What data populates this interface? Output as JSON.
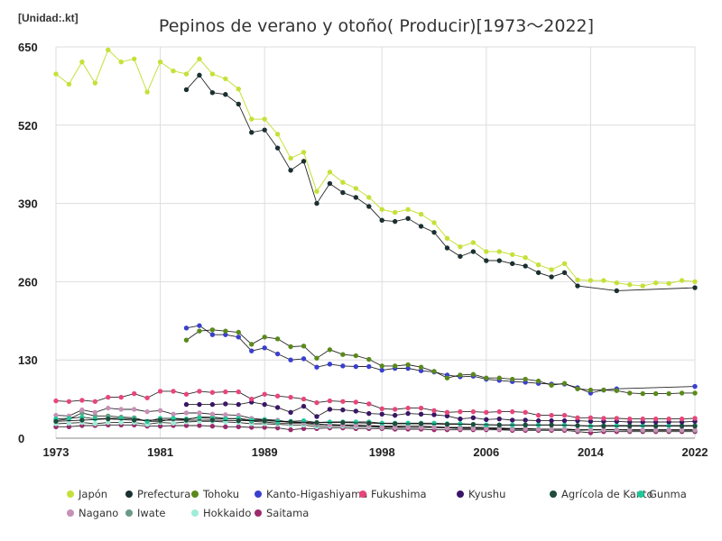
{
  "chart_data": {
    "type": "line",
    "title": "Pepinos de verano y otoño( Producir)[1973～2022]",
    "unit_label": "[Unidad:.kt]",
    "xlim": [
      1973,
      2022
    ],
    "ylim": [
      0,
      650
    ],
    "x_ticks": [
      1973,
      1981,
      1989,
      1998,
      2006,
      2014,
      2022
    ],
    "y_ticks": [
      0,
      130,
      260,
      390,
      520,
      650
    ],
    "grid": true,
    "legend_position": "bottom",
    "series": [
      {
        "name": "Japón",
        "color": "#c6e03a",
        "x": [
          1973,
          1974,
          1975,
          1976,
          1977,
          1978,
          1979,
          1980,
          1981,
          1982,
          1983,
          1984,
          1985,
          1986,
          1987,
          1988,
          1989,
          1990,
          1991,
          1992,
          1993,
          1994,
          1995,
          1996,
          1997,
          1998,
          1999,
          2000,
          2001,
          2002,
          2003,
          2004,
          2005,
          2006,
          2007,
          2008,
          2009,
          2010,
          2011,
          2012,
          2013,
          2014,
          2015,
          2016,
          2017,
          2018,
          2019,
          2020,
          2021,
          2022
        ],
        "y": [
          605,
          588,
          625,
          590,
          645,
          625,
          630,
          575,
          625,
          610,
          605,
          630,
          605,
          597,
          580,
          530,
          530,
          505,
          465,
          475,
          410,
          442,
          425,
          415,
          400,
          380,
          375,
          380,
          372,
          358,
          332,
          318,
          325,
          310,
          310,
          305,
          300,
          288,
          280,
          290,
          263,
          262,
          262,
          258,
          255,
          253,
          258,
          257,
          262,
          260
        ]
      },
      {
        "name": "Prefectura",
        "color": "#1b3030",
        "x": [
          1983,
          1984,
          1985,
          1986,
          1987,
          1988,
          1989,
          1990,
          1991,
          1992,
          1993,
          1994,
          1995,
          1996,
          1997,
          1998,
          1999,
          2000,
          2001,
          2002,
          2003,
          2004,
          2005,
          2006,
          2007,
          2008,
          2009,
          2010,
          2011,
          2012,
          2013,
          2016,
          2022
        ],
        "y": [
          579,
          603,
          574,
          571,
          555,
          508,
          512,
          482,
          445,
          460,
          390,
          423,
          408,
          400,
          385,
          362,
          360,
          365,
          352,
          342,
          316,
          302,
          310,
          295,
          295,
          290,
          286,
          275,
          268,
          275,
          253,
          245,
          250
        ]
      },
      {
        "name": "Tohoku",
        "color": "#5a8a1a",
        "x": [
          1983,
          1984,
          1985,
          1986,
          1987,
          1988,
          1989,
          1990,
          1991,
          1992,
          1993,
          1994,
          1995,
          1996,
          1997,
          1998,
          1999,
          2000,
          2001,
          2002,
          2003,
          2004,
          2005,
          2006,
          2007,
          2008,
          2009,
          2010,
          2011,
          2012,
          2013,
          2014,
          2015,
          2016,
          2017,
          2018,
          2019,
          2020,
          2021,
          2022
        ],
        "y": [
          163,
          178,
          180,
          178,
          176,
          156,
          168,
          165,
          152,
          153,
          133,
          147,
          139,
          137,
          131,
          120,
          120,
          122,
          118,
          111,
          100,
          105,
          106,
          100,
          100,
          98,
          98,
          95,
          88,
          91,
          82,
          80,
          80,
          79,
          75,
          74,
          74,
          74,
          75,
          75
        ]
      },
      {
        "name": "Kanto-Higashiyama",
        "color": "#3b3fcf",
        "x": [
          1983,
          1984,
          1985,
          1986,
          1987,
          1988,
          1989,
          1990,
          1991,
          1992,
          1993,
          1994,
          1995,
          1996,
          1997,
          1998,
          1999,
          2000,
          2001,
          2002,
          2003,
          2004,
          2005,
          2006,
          2007,
          2008,
          2009,
          2010,
          2011,
          2012,
          2013,
          2014,
          2015,
          2016,
          2022
        ],
        "y": [
          183,
          187,
          172,
          172,
          168,
          145,
          150,
          140,
          130,
          132,
          118,
          123,
          120,
          119,
          119,
          113,
          116,
          116,
          112,
          110,
          105,
          102,
          103,
          98,
          96,
          94,
          93,
          91,
          90,
          90,
          84,
          75,
          80,
          82,
          86
        ]
      },
      {
        "name": "Fukushima",
        "color": "#e8467a",
        "x": [
          1973,
          1974,
          1975,
          1976,
          1977,
          1978,
          1979,
          1980,
          1981,
          1982,
          1983,
          1984,
          1985,
          1986,
          1987,
          1988,
          1989,
          1990,
          1991,
          1992,
          1993,
          1994,
          1995,
          1996,
          1997,
          1998,
          1999,
          2000,
          2001,
          2002,
          2003,
          2004,
          2005,
          2006,
          2007,
          2008,
          2009,
          2010,
          2011,
          2012,
          2013,
          2014,
          2015,
          2016,
          2017,
          2018,
          2019,
          2020,
          2021,
          2022
        ],
        "y": [
          62,
          61,
          63,
          61,
          68,
          68,
          74,
          67,
          78,
          78,
          73,
          78,
          76,
          77,
          77,
          65,
          73,
          70,
          68,
          65,
          59,
          62,
          61,
          60,
          57,
          49,
          48,
          50,
          50,
          46,
          43,
          44,
          44,
          43,
          44,
          44,
          43,
          38,
          38,
          38,
          34,
          34,
          33,
          33,
          32,
          32,
          32,
          32,
          32,
          33
        ]
      },
      {
        "name": "Kyushu",
        "color": "#3a1766",
        "x": [
          1983,
          1984,
          1985,
          1986,
          1987,
          1988,
          1989,
          1990,
          1991,
          1992,
          1993,
          1994,
          1995,
          1996,
          1997,
          1998,
          1999,
          2000,
          2001,
          2002,
          2003,
          2004,
          2005,
          2006,
          2007,
          2008,
          2009,
          2010,
          2011,
          2012,
          2013,
          2014,
          2015,
          2016,
          2017,
          2018,
          2019,
          2020,
          2021,
          2022
        ],
        "y": [
          56,
          56,
          56,
          57,
          56,
          60,
          56,
          51,
          43,
          53,
          36,
          48,
          47,
          45,
          41,
          40,
          38,
          41,
          40,
          39,
          37,
          32,
          34,
          31,
          32,
          30,
          30,
          29,
          29,
          29,
          29,
          28,
          28,
          28,
          27,
          27,
          27,
          27,
          27,
          28
        ]
      },
      {
        "name": "Agrícola de Kanto",
        "color": "#1e4d3b",
        "x": [
          1973,
          1975,
          1977,
          1979,
          1981,
          1983,
          1985,
          1987,
          1989,
          1991,
          1993,
          1995,
          1997,
          1999,
          2001,
          2003,
          2005,
          2007,
          2009,
          2011,
          2013,
          2015,
          2017,
          2019,
          2021,
          2022
        ],
        "y": [
          28,
          30,
          32,
          30,
          30,
          30,
          30,
          29,
          29,
          27,
          26,
          26,
          25,
          24,
          24,
          23,
          23,
          22,
          22,
          22,
          21,
          20,
          20,
          20,
          20,
          20
        ]
      },
      {
        "name": "Gunma",
        "color": "#20c99a",
        "x": [
          1973,
          1974,
          1975,
          1976,
          1977,
          1978,
          1979,
          1980,
          1981,
          1982,
          1983,
          1984,
          1985,
          1986,
          1987,
          1988,
          1989,
          1990,
          1991,
          1992,
          1993,
          1994,
          1995,
          1996,
          1997,
          1998,
          1999,
          2000,
          2001,
          2002,
          2003,
          2004,
          2005,
          2006,
          2007,
          2008,
          2009,
          2010,
          2011,
          2012,
          2013,
          2014,
          2015,
          2016,
          2017,
          2018,
          2019,
          2020,
          2021,
          2022
        ],
        "y": [
          32,
          33,
          35,
          32,
          33,
          33,
          32,
          28,
          33,
          33,
          32,
          34,
          33,
          32,
          33,
          30,
          31,
          28,
          28,
          29,
          26,
          27,
          27,
          27,
          27,
          25,
          25,
          25,
          25,
          25,
          24,
          24,
          23,
          22,
          22,
          22,
          22,
          22,
          22,
          22,
          21,
          20,
          21,
          21,
          21,
          21,
          21,
          21,
          21,
          21
        ]
      },
      {
        "name": "Nagano",
        "color": "#c790b7",
        "x": [
          1973,
          1974,
          1975,
          1976,
          1977,
          1978,
          1979,
          1980,
          1981,
          1982,
          1983,
          1984,
          1985,
          1986,
          1987,
          1988,
          1989,
          1990,
          1991,
          1992,
          1993,
          1994,
          1995,
          1996,
          1997,
          1998,
          1999,
          2000,
          2001,
          2002,
          2003,
          2004,
          2005,
          2006,
          2007,
          2008,
          2009,
          2010,
          2011,
          2012,
          2013,
          2014,
          2015,
          2016,
          2017,
          2018,
          2019,
          2020,
          2021,
          2022
        ],
        "y": [
          38,
          37,
          47,
          43,
          50,
          48,
          48,
          44,
          46,
          40,
          42,
          42,
          40,
          39,
          38,
          33,
          31,
          30,
          26,
          26,
          24,
          22,
          22,
          21,
          21,
          19,
          19,
          18,
          18,
          18,
          17,
          16,
          16,
          16,
          15,
          15,
          15,
          15,
          15,
          15,
          14,
          14,
          14,
          14,
          14,
          14,
          14,
          14,
          14,
          14
        ]
      },
      {
        "name": "Iwate",
        "color": "#6b9a85",
        "x": [
          1973,
          1974,
          1975,
          1976,
          1977,
          1978,
          1979,
          1980,
          1981,
          1982,
          1983,
          1984,
          1985,
          1986,
          1987,
          1988,
          1989,
          1990,
          1991,
          1992,
          1993,
          1994,
          1995,
          1996,
          1997,
          1998,
          1999,
          2000,
          2001,
          2002,
          2003,
          2004,
          2005,
          2006,
          2007,
          2008,
          2009,
          2010,
          2011,
          2012,
          2013,
          2014,
          2015,
          2016,
          2017,
          2018,
          2019,
          2020,
          2021,
          2022
        ],
        "y": [
          29,
          32,
          42,
          37,
          37,
          35,
          34,
          28,
          28,
          32,
          31,
          35,
          35,
          33,
          32,
          28,
          27,
          25,
          25,
          25,
          22,
          23,
          22,
          22,
          21,
          20,
          20,
          20,
          20,
          19,
          18,
          18,
          18,
          18,
          17,
          16,
          16,
          15,
          15,
          15,
          13,
          14,
          14,
          14,
          13,
          13,
          13,
          13,
          13,
          13
        ]
      },
      {
        "name": "Hokkaido",
        "color": "#a0ecd8",
        "x": [
          1973,
          1974,
          1975,
          1976,
          1977,
          1978,
          1979,
          1980,
          1981,
          1982,
          1983,
          1984,
          1985,
          1986,
          1987,
          1988,
          1989,
          1990,
          1991,
          1992,
          1993,
          1994,
          1995,
          1996,
          1997,
          1998,
          1999,
          2000,
          2001,
          2002,
          2003,
          2004,
          2005,
          2006,
          2007,
          2008,
          2009,
          2010,
          2011,
          2012,
          2013,
          2014,
          2015,
          2016,
          2017,
          2018,
          2019,
          2020,
          2021,
          2022
        ],
        "y": [
          24,
          25,
          26,
          24,
          26,
          26,
          26,
          23,
          26,
          25,
          27,
          28,
          28,
          27,
          26,
          24,
          24,
          23,
          22,
          22,
          19,
          20,
          20,
          19,
          19,
          18,
          18,
          18,
          18,
          18,
          17,
          17,
          17,
          16,
          16,
          16,
          16,
          15,
          15,
          15,
          14,
          14,
          14,
          14,
          14,
          14,
          14,
          14,
          14,
          14
        ]
      },
      {
        "name": "Saitama",
        "color": "#9c2a6c",
        "x": [
          1973,
          1974,
          1975,
          1976,
          1977,
          1978,
          1979,
          1980,
          1981,
          1982,
          1983,
          1984,
          1985,
          1986,
          1987,
          1988,
          1989,
          1990,
          1991,
          1992,
          1993,
          1994,
          1995,
          1996,
          1997,
          1998,
          1999,
          2000,
          2001,
          2002,
          2003,
          2004,
          2005,
          2006,
          2007,
          2008,
          2009,
          2010,
          2011,
          2012,
          2013,
          2014,
          2015,
          2016,
          2017,
          2018,
          2019,
          2020,
          2021,
          2022
        ],
        "y": [
          19,
          19,
          21,
          21,
          22,
          22,
          22,
          20,
          20,
          21,
          21,
          21,
          20,
          19,
          19,
          18,
          18,
          17,
          14,
          16,
          16,
          17,
          17,
          16,
          16,
          16,
          15,
          15,
          15,
          14,
          14,
          14,
          14,
          14,
          14,
          13,
          13,
          13,
          13,
          13,
          11,
          9,
          11,
          11,
          11,
          11,
          11,
          11,
          11,
          11
        ]
      }
    ]
  }
}
